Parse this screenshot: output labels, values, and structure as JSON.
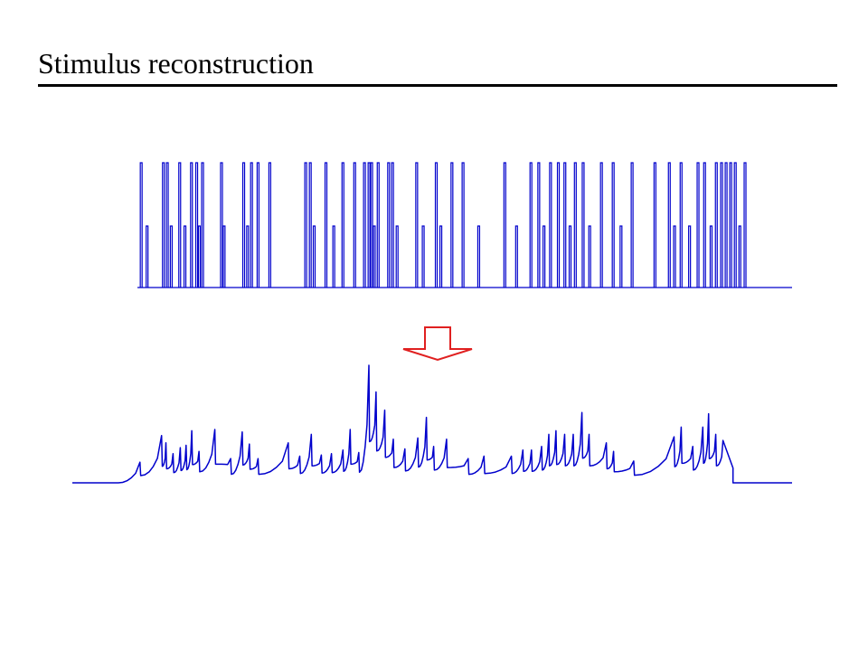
{
  "slide": {
    "title": "Stimulus reconstruction"
  },
  "colors": {
    "trace": "#0000cc",
    "arrow": "#e02020"
  },
  "spike_train": {
    "description_units": "spike times (relative, 0-1)",
    "spikes": [
      {
        "t": 0.003,
        "tall": true
      },
      {
        "t": 0.012,
        "tall": false
      },
      {
        "t": 0.037,
        "tall": true
      },
      {
        "t": 0.043,
        "tall": true
      },
      {
        "t": 0.049,
        "tall": false
      },
      {
        "t": 0.062,
        "tall": true
      },
      {
        "t": 0.07,
        "tall": false
      },
      {
        "t": 0.08,
        "tall": true
      },
      {
        "t": 0.088,
        "tall": true
      },
      {
        "t": 0.092,
        "tall": false
      },
      {
        "t": 0.097,
        "tall": true
      },
      {
        "t": 0.126,
        "tall": true
      },
      {
        "t": 0.13,
        "tall": false
      },
      {
        "t": 0.16,
        "tall": true
      },
      {
        "t": 0.166,
        "tall": false
      },
      {
        "t": 0.172,
        "tall": true
      },
      {
        "t": 0.182,
        "tall": true
      },
      {
        "t": 0.2,
        "tall": true
      },
      {
        "t": 0.255,
        "tall": true
      },
      {
        "t": 0.262,
        "tall": true
      },
      {
        "t": 0.268,
        "tall": false
      },
      {
        "t": 0.286,
        "tall": true
      },
      {
        "t": 0.298,
        "tall": false
      },
      {
        "t": 0.312,
        "tall": true
      },
      {
        "t": 0.33,
        "tall": true
      },
      {
        "t": 0.345,
        "tall": true
      },
      {
        "t": 0.352,
        "tall": true
      },
      {
        "t": 0.356,
        "tall": true
      },
      {
        "t": 0.36,
        "tall": false
      },
      {
        "t": 0.366,
        "tall": true
      },
      {
        "t": 0.382,
        "tall": true
      },
      {
        "t": 0.388,
        "tall": true
      },
      {
        "t": 0.395,
        "tall": false
      },
      {
        "t": 0.425,
        "tall": true
      },
      {
        "t": 0.435,
        "tall": false
      },
      {
        "t": 0.455,
        "tall": true
      },
      {
        "t": 0.462,
        "tall": false
      },
      {
        "t": 0.479,
        "tall": true
      },
      {
        "t": 0.496,
        "tall": true
      },
      {
        "t": 0.52,
        "tall": false
      },
      {
        "t": 0.56,
        "tall": true
      },
      {
        "t": 0.578,
        "tall": false
      },
      {
        "t": 0.6,
        "tall": true
      },
      {
        "t": 0.612,
        "tall": true
      },
      {
        "t": 0.62,
        "tall": false
      },
      {
        "t": 0.63,
        "tall": true
      },
      {
        "t": 0.642,
        "tall": true
      },
      {
        "t": 0.652,
        "tall": true
      },
      {
        "t": 0.66,
        "tall": false
      },
      {
        "t": 0.668,
        "tall": true
      },
      {
        "t": 0.68,
        "tall": true
      },
      {
        "t": 0.69,
        "tall": false
      },
      {
        "t": 0.708,
        "tall": true
      },
      {
        "t": 0.726,
        "tall": true
      },
      {
        "t": 0.738,
        "tall": false
      },
      {
        "t": 0.755,
        "tall": true
      },
      {
        "t": 0.79,
        "tall": true
      },
      {
        "t": 0.812,
        "tall": true
      },
      {
        "t": 0.82,
        "tall": false
      },
      {
        "t": 0.83,
        "tall": true
      },
      {
        "t": 0.843,
        "tall": false
      },
      {
        "t": 0.856,
        "tall": true
      },
      {
        "t": 0.866,
        "tall": true
      },
      {
        "t": 0.876,
        "tall": false
      },
      {
        "t": 0.884,
        "tall": true
      },
      {
        "t": 0.892,
        "tall": true
      },
      {
        "t": 0.899,
        "tall": true
      },
      {
        "t": 0.906,
        "tall": true
      },
      {
        "t": 0.913,
        "tall": true
      },
      {
        "t": 0.92,
        "tall": false
      },
      {
        "t": 0.928,
        "tall": true
      }
    ]
  },
  "reconstruction": {
    "description_units": "relative time and amplitude (0-1)",
    "baseline": 0.0,
    "peaks": [
      {
        "t": 0.094,
        "a": 0.17
      },
      {
        "t": 0.124,
        "a": 0.39
      },
      {
        "t": 0.13,
        "a": 0.33
      },
      {
        "t": 0.14,
        "a": 0.24
      },
      {
        "t": 0.15,
        "a": 0.29
      },
      {
        "t": 0.158,
        "a": 0.31
      },
      {
        "t": 0.166,
        "a": 0.43
      },
      {
        "t": 0.176,
        "a": 0.26
      },
      {
        "t": 0.198,
        "a": 0.44
      },
      {
        "t": 0.22,
        "a": 0.2
      },
      {
        "t": 0.236,
        "a": 0.42
      },
      {
        "t": 0.246,
        "a": 0.32
      },
      {
        "t": 0.258,
        "a": 0.2
      },
      {
        "t": 0.3,
        "a": 0.33
      },
      {
        "t": 0.316,
        "a": 0.22
      },
      {
        "t": 0.332,
        "a": 0.4
      },
      {
        "t": 0.346,
        "a": 0.23
      },
      {
        "t": 0.36,
        "a": 0.24
      },
      {
        "t": 0.376,
        "a": 0.27
      },
      {
        "t": 0.386,
        "a": 0.44
      },
      {
        "t": 0.398,
        "a": 0.25
      },
      {
        "t": 0.412,
        "a": 0.97
      },
      {
        "t": 0.422,
        "a": 0.75
      },
      {
        "t": 0.434,
        "a": 0.6
      },
      {
        "t": 0.446,
        "a": 0.36
      },
      {
        "t": 0.462,
        "a": 0.28
      },
      {
        "t": 0.48,
        "a": 0.37
      },
      {
        "t": 0.492,
        "a": 0.54
      },
      {
        "t": 0.502,
        "a": 0.3
      },
      {
        "t": 0.52,
        "a": 0.36
      },
      {
        "t": 0.55,
        "a": 0.2
      },
      {
        "t": 0.572,
        "a": 0.22
      },
      {
        "t": 0.61,
        "a": 0.22
      },
      {
        "t": 0.626,
        "a": 0.27
      },
      {
        "t": 0.638,
        "a": 0.27
      },
      {
        "t": 0.652,
        "a": 0.3
      },
      {
        "t": 0.662,
        "a": 0.4
      },
      {
        "t": 0.672,
        "a": 0.43
      },
      {
        "t": 0.684,
        "a": 0.4
      },
      {
        "t": 0.696,
        "a": 0.4
      },
      {
        "t": 0.708,
        "a": 0.58
      },
      {
        "t": 0.718,
        "a": 0.4
      },
      {
        "t": 0.742,
        "a": 0.33
      },
      {
        "t": 0.752,
        "a": 0.26
      },
      {
        "t": 0.78,
        "a": 0.18
      },
      {
        "t": 0.836,
        "a": 0.38
      },
      {
        "t": 0.846,
        "a": 0.46
      },
      {
        "t": 0.862,
        "a": 0.3
      },
      {
        "t": 0.876,
        "a": 0.46
      },
      {
        "t": 0.884,
        "a": 0.57
      },
      {
        "t": 0.894,
        "a": 0.4
      },
      {
        "t": 0.904,
        "a": 0.35
      }
    ],
    "end": 0.918
  }
}
